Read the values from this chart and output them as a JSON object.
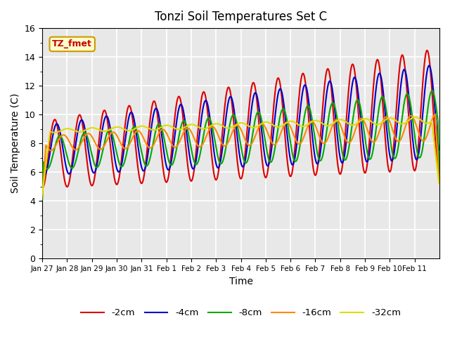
{
  "title": "Tonzi Soil Temperatures Set C",
  "xlabel": "Time",
  "ylabel": "Soil Temperature (C)",
  "ylim": [
    0,
    16
  ],
  "yticks": [
    0,
    2,
    4,
    6,
    8,
    10,
    12,
    14,
    16
  ],
  "annotation_text": "TZ_fmet",
  "annotation_bbox_facecolor": "#ffffcc",
  "annotation_bbox_edgecolor": "#cc9900",
  "annotation_color": "#cc0000",
  "series_colors": [
    "#dd0000",
    "#0000cc",
    "#00aa00",
    "#ff8800",
    "#dddd00"
  ],
  "series_labels": [
    "-2cm",
    "-4cm",
    "-8cm",
    "-16cm",
    "-32cm"
  ],
  "line_width": 1.5,
  "background_color": "#e8e8e8",
  "grid_color": "white",
  "n_days": 16,
  "x_tick_labels": [
    "Jan 27",
    "Jan 28",
    "Jan 29",
    "Jan 30",
    "Jan 31",
    "Feb 1",
    "Feb 2",
    "Feb 3",
    "Feb 4",
    "Feb 5",
    "Feb 6",
    "Feb 7",
    "Feb 8",
    "Feb 9",
    "Feb 10",
    "Feb 11"
  ],
  "fig_width": 6.4,
  "fig_height": 4.8,
  "dpi": 100
}
